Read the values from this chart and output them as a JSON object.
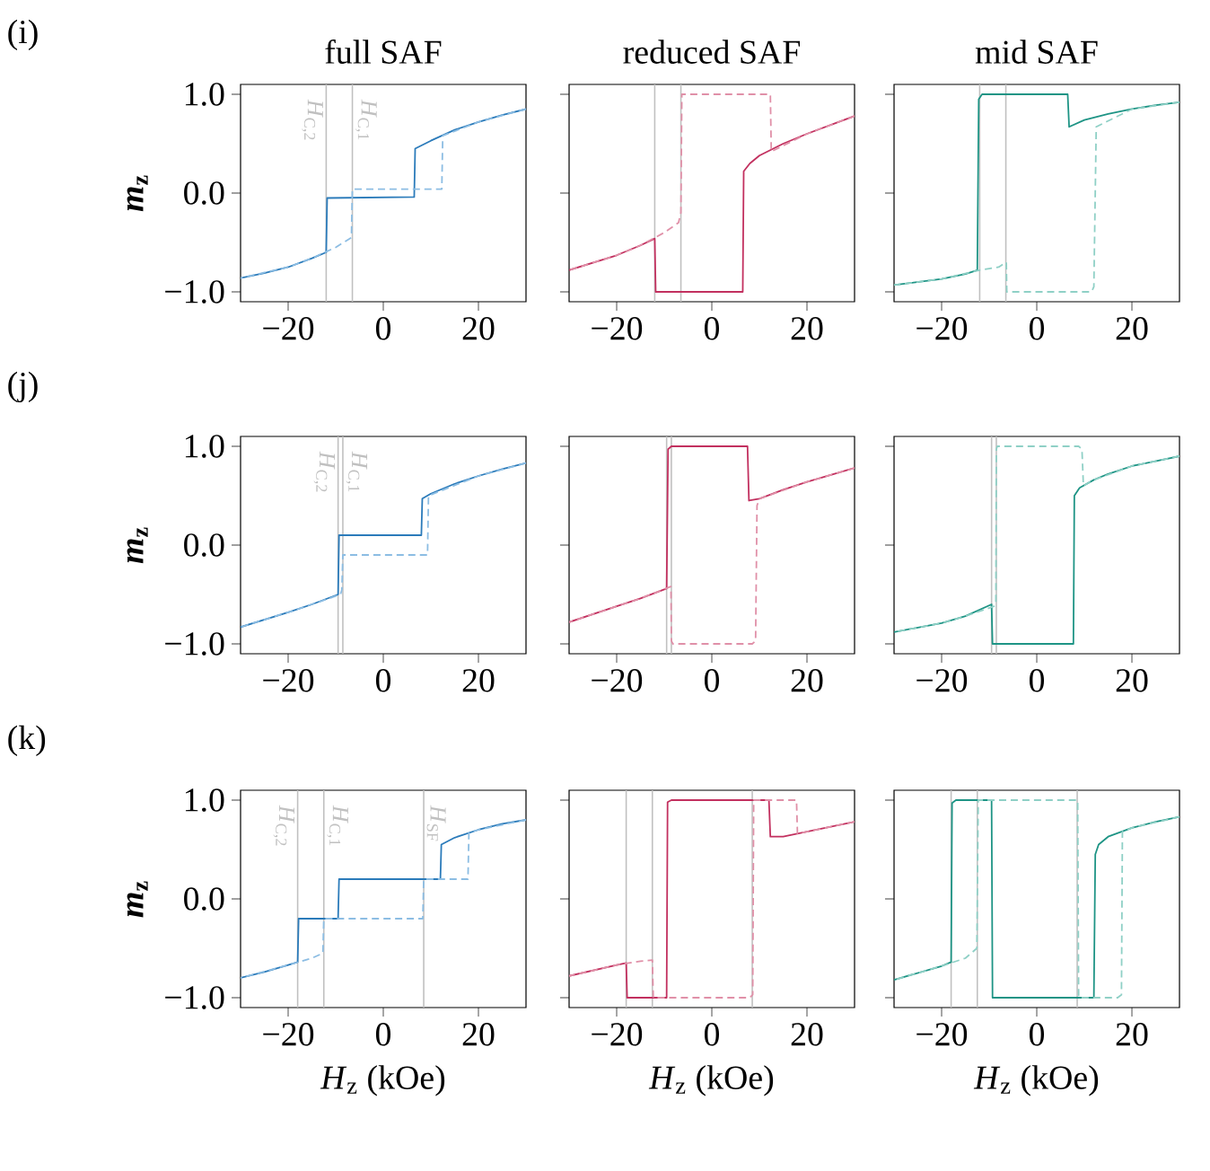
{
  "chart_data": [
    {
      "type": "line",
      "title": "full SAF",
      "ylabel": "*m*$_{z}$",
      "annotations": [
        "(i)"
      ],
      "xlim": [
        -30,
        30
      ],
      "ylim": [
        -1.1,
        1.1
      ],
      "xticks": [
        {
          "value": -20,
          "label": "−20"
        },
        {
          "value": 0,
          "label": "0"
        },
        {
          "value": 20,
          "label": "20"
        }
      ],
      "yticks": [
        {
          "value": -1,
          "label": "−1.0"
        },
        {
          "value": 0,
          "label": "0.0"
        },
        {
          "value": 1,
          "label": "1.0"
        }
      ],
      "ref_lines": [
        {
          "axis": "x",
          "value": -12,
          "label": "*H*$_{C,2}$",
          "color": "#c0c0c0"
        },
        {
          "axis": "x",
          "value": -6.5,
          "label": "*H*$_{C,1}$",
          "color": "#c0c0c0"
        }
      ],
      "series": [
        {
          "color": "#2b7bba",
          "line_style": "solid",
          "x": [
            -30,
            -25,
            -20,
            -15,
            -12,
            -11.8,
            6.5,
            6.7,
            10,
            15,
            20,
            25,
            30
          ],
          "values": [
            -0.86,
            -0.81,
            -0.75,
            -0.66,
            -0.6,
            -0.05,
            -0.04,
            0.45,
            0.53,
            0.64,
            0.72,
            0.79,
            0.85
          ]
        },
        {
          "color": "#8cbde3",
          "line_style": "dashed",
          "x": [
            30,
            20,
            12.5,
            12.3,
            -6.5,
            -6.7,
            -10,
            -15,
            -20,
            -30
          ],
          "values": [
            0.85,
            0.72,
            0.58,
            0.04,
            0.04,
            -0.45,
            -0.55,
            -0.66,
            -0.75,
            -0.86
          ]
        }
      ]
    },
    {
      "type": "line",
      "title": "reduced SAF",
      "tick_labels": "x",
      "xlim": [
        -30,
        30
      ],
      "ylim": [
        -1.1,
        1.1
      ],
      "xticks": [
        {
          "value": -20,
          "label": "−20"
        },
        {
          "value": 0,
          "label": "0"
        },
        {
          "value": 20,
          "label": "20"
        }
      ],
      "yticks": [
        {
          "value": -1,
          "label": null
        },
        {
          "value": 0,
          "label": null
        },
        {
          "value": 1,
          "label": null
        }
      ],
      "ref_lines": [
        {
          "axis": "x",
          "value": -12,
          "color": "#c0c0c0"
        },
        {
          "axis": "x",
          "value": -6.5,
          "color": "#c0c0c0"
        }
      ],
      "series": [
        {
          "color": "#c2305f",
          "line_style": "solid",
          "x": [
            -30,
            -20,
            -15,
            -12,
            -11.8,
            6.5,
            6.7,
            8,
            10,
            15,
            20,
            25,
            30
          ],
          "values": [
            -0.78,
            -0.63,
            -0.53,
            -0.46,
            -1.0,
            -1.0,
            0.22,
            0.3,
            0.38,
            0.5,
            0.6,
            0.69,
            0.78
          ]
        },
        {
          "color": "#e090a8",
          "line_style": "dashed",
          "x": [
            30,
            20,
            12.5,
            12.3,
            -6.3,
            -6.5,
            -7,
            -10,
            -15,
            -20,
            -30
          ],
          "values": [
            0.78,
            0.6,
            0.42,
            1.0,
            1.0,
            -0.2,
            -0.3,
            -0.4,
            -0.53,
            -0.63,
            -0.78
          ]
        }
      ]
    },
    {
      "type": "line",
      "title": "mid SAF",
      "tick_labels": "x",
      "xlim": [
        -30,
        30
      ],
      "ylim": [
        -1.1,
        1.1
      ],
      "xticks": [
        {
          "value": -20,
          "label": "−20"
        },
        {
          "value": 0,
          "label": "0"
        },
        {
          "value": 20,
          "label": "20"
        }
      ],
      "yticks": [
        {
          "value": -1,
          "label": null
        },
        {
          "value": 0,
          "label": null
        },
        {
          "value": 1,
          "label": null
        }
      ],
      "ref_lines": [
        {
          "axis": "x",
          "value": -12,
          "color": "#c0c0c0"
        },
        {
          "axis": "x",
          "value": -6.5,
          "color": "#c0c0c0"
        }
      ],
      "series": [
        {
          "color": "#1e9485",
          "line_style": "solid",
          "x": [
            -30,
            -20,
            -15,
            -12.5,
            -12.2,
            -11.5,
            6.5,
            6.8,
            10,
            15,
            20,
            25,
            30
          ],
          "values": [
            -0.93,
            -0.87,
            -0.82,
            -0.78,
            0.95,
            1.0,
            1.0,
            0.67,
            0.74,
            0.8,
            0.85,
            0.89,
            0.92
          ]
        },
        {
          "color": "#8fd0c6",
          "line_style": "dashed",
          "x": [
            30,
            20,
            12.5,
            12,
            11.5,
            -6.3,
            -6.4,
            -8,
            -12,
            -20,
            -30
          ],
          "values": [
            0.92,
            0.85,
            0.67,
            -0.95,
            -1.0,
            -1.0,
            -0.7,
            -0.75,
            -0.78,
            -0.87,
            -0.93
          ]
        }
      ]
    },
    {
      "type": "line",
      "ylabel": "*m*$_{z}$",
      "annotations": [
        "(j)"
      ],
      "xlim": [
        -30,
        30
      ],
      "ylim": [
        -1.1,
        1.1
      ],
      "xticks": [
        {
          "value": -20,
          "label": "−20"
        },
        {
          "value": 0,
          "label": "0"
        },
        {
          "value": 20,
          "label": "20"
        }
      ],
      "yticks": [
        {
          "value": -1,
          "label": "−1.0"
        },
        {
          "value": 0,
          "label": "0.0"
        },
        {
          "value": 1,
          "label": "1.0"
        }
      ],
      "ref_lines": [
        {
          "axis": "x",
          "value": -9.5,
          "label": "*H*$_{C,2}$",
          "color": "#c0c0c0"
        },
        {
          "axis": "x",
          "value": -8.5,
          "label": "*H*$_{C,1}$",
          "color": "#c0c0c0"
        }
      ],
      "series": [
        {
          "color": "#2b7bba",
          "line_style": "solid",
          "x": [
            -30,
            -20,
            -15,
            -9.5,
            -9.3,
            8,
            8.2,
            10,
            15,
            20,
            25,
            30
          ],
          "values": [
            -0.83,
            -0.68,
            -0.6,
            -0.5,
            0.1,
            0.1,
            0.47,
            0.52,
            0.62,
            0.7,
            0.77,
            0.83
          ]
        },
        {
          "color": "#8cbde3",
          "line_style": "dashed",
          "x": [
            30,
            20,
            9.5,
            9.3,
            -8.5,
            -8.7,
            -9,
            -15,
            -20,
            -30
          ],
          "values": [
            0.83,
            0.7,
            0.5,
            -0.1,
            -0.1,
            -0.45,
            -0.5,
            -0.6,
            -0.68,
            -0.83
          ]
        }
      ]
    },
    {
      "type": "line",
      "tick_labels": "x",
      "xlim": [
        -30,
        30
      ],
      "ylim": [
        -1.1,
        1.1
      ],
      "xticks": [
        {
          "value": -20,
          "label": "−20"
        },
        {
          "value": 0,
          "label": "0"
        },
        {
          "value": 20,
          "label": "20"
        }
      ],
      "yticks": [
        {
          "value": -1,
          "label": null
        },
        {
          "value": 0,
          "label": null
        },
        {
          "value": 1,
          "label": null
        }
      ],
      "ref_lines": [
        {
          "axis": "x",
          "value": -9.5,
          "color": "#c0c0c0"
        },
        {
          "axis": "x",
          "value": -8.5,
          "color": "#c0c0c0"
        }
      ],
      "series": [
        {
          "color": "#c2305f",
          "line_style": "solid",
          "x": [
            -30,
            -20,
            -15,
            -9.5,
            -9.2,
            -8.5,
            7.5,
            7.8,
            10,
            15,
            20,
            25,
            30
          ],
          "values": [
            -0.78,
            -0.62,
            -0.54,
            -0.44,
            0.97,
            1.0,
            1.0,
            0.45,
            0.47,
            0.56,
            0.64,
            0.71,
            0.78
          ]
        },
        {
          "color": "#e090a8",
          "line_style": "dashed",
          "x": [
            30,
            20,
            10,
            9.5,
            9.2,
            8.5,
            -8.2,
            -8.5,
            -8.6,
            -15,
            -20,
            -30
          ],
          "values": [
            0.78,
            0.64,
            0.47,
            0.4,
            -0.97,
            -1.0,
            -1.0,
            -0.97,
            -0.42,
            -0.54,
            -0.62,
            -0.78
          ]
        }
      ]
    },
    {
      "type": "line",
      "tick_labels": "x",
      "xlim": [
        -30,
        30
      ],
      "ylim": [
        -1.1,
        1.1
      ],
      "xticks": [
        {
          "value": -20,
          "label": "−20"
        },
        {
          "value": 0,
          "label": "0"
        },
        {
          "value": 20,
          "label": "20"
        }
      ],
      "yticks": [
        {
          "value": -1,
          "label": null
        },
        {
          "value": 0,
          "label": null
        },
        {
          "value": 1,
          "label": null
        }
      ],
      "ref_lines": [
        {
          "axis": "x",
          "value": -9.5,
          "color": "#c0c0c0"
        },
        {
          "axis": "x",
          "value": -8.5,
          "color": "#c0c0c0"
        }
      ],
      "series": [
        {
          "color": "#1e9485",
          "line_style": "solid",
          "x": [
            -30,
            -20,
            -15,
            -9.5,
            -9.3,
            7.7,
            7.9,
            9,
            12,
            15,
            20,
            25,
            30
          ],
          "values": [
            -0.88,
            -0.79,
            -0.72,
            -0.6,
            -1.0,
            -1.0,
            0.5,
            0.58,
            0.66,
            0.72,
            0.8,
            0.85,
            0.9
          ]
        },
        {
          "color": "#8fd0c6",
          "line_style": "dashed",
          "x": [
            30,
            20,
            12,
            9.8,
            9.5,
            8.8,
            -8.3,
            -8.5,
            -8.6,
            -9,
            -15,
            -20,
            -30
          ],
          "values": [
            0.9,
            0.8,
            0.66,
            0.6,
            0.97,
            1.0,
            1.0,
            0.97,
            -0.6,
            -0.62,
            -0.72,
            -0.79,
            -0.88
          ]
        }
      ]
    },
    {
      "type": "line",
      "ylabel": "*m*$_{z}$",
      "xlabel": "*H*$_{z}$ (kOe)",
      "annotations": [
        "(k)"
      ],
      "xlim": [
        -30,
        30
      ],
      "ylim": [
        -1.1,
        1.1
      ],
      "xticks": [
        {
          "value": -20,
          "label": "−20"
        },
        {
          "value": 0,
          "label": "0"
        },
        {
          "value": 20,
          "label": "20"
        }
      ],
      "yticks": [
        {
          "value": -1,
          "label": "−1.0"
        },
        {
          "value": 0,
          "label": "0.0"
        },
        {
          "value": 1,
          "label": "1.0"
        }
      ],
      "ref_lines": [
        {
          "axis": "x",
          "value": -18,
          "label": "*H*$_{C,2}$",
          "color": "#c0c0c0"
        },
        {
          "axis": "x",
          "value": -12.5,
          "label": "*H*$_{C,1}$",
          "color": "#c0c0c0"
        },
        {
          "axis": "x",
          "value": 8.5,
          "label": "*H*$_{SF}$",
          "color": "#c0c0c0"
        }
      ],
      "series": [
        {
          "color": "#2b7bba",
          "line_style": "solid",
          "x": [
            -30,
            -25,
            -20,
            -18,
            -17.8,
            -9.5,
            -9.3,
            12,
            12.2,
            15,
            20,
            25,
            30
          ],
          "values": [
            -0.8,
            -0.74,
            -0.67,
            -0.64,
            -0.2,
            -0.2,
            0.2,
            0.2,
            0.55,
            0.62,
            0.7,
            0.76,
            0.8
          ]
        },
        {
          "color": "#8cbde3",
          "line_style": "dashed",
          "x": [
            30,
            20,
            18,
            17.8,
            8.5,
            8.3,
            -12.5,
            -12.7,
            -15,
            -20,
            -30
          ],
          "values": [
            0.8,
            0.7,
            0.67,
            0.2,
            0.2,
            -0.2,
            -0.2,
            -0.55,
            -0.6,
            -0.67,
            -0.8
          ]
        }
      ]
    },
    {
      "type": "line",
      "xlabel": "*H*$_{z}$ (kOe)",
      "tick_labels": "x",
      "xlim": [
        -30,
        30
      ],
      "ylim": [
        -1.1,
        1.1
      ],
      "xticks": [
        {
          "value": -20,
          "label": "−20"
        },
        {
          "value": 0,
          "label": "0"
        },
        {
          "value": 20,
          "label": "20"
        }
      ],
      "yticks": [
        {
          "value": -1,
          "label": null
        },
        {
          "value": 0,
          "label": null
        },
        {
          "value": 1,
          "label": null
        }
      ],
      "ref_lines": [
        {
          "axis": "x",
          "value": -18,
          "color": "#c0c0c0"
        },
        {
          "axis": "x",
          "value": -12.5,
          "color": "#c0c0c0"
        },
        {
          "axis": "x",
          "value": 8.5,
          "color": "#c0c0c0"
        }
      ],
      "series": [
        {
          "color": "#c2305f",
          "line_style": "solid",
          "x": [
            -30,
            -20,
            -18,
            -17.8,
            -9.5,
            -9.3,
            -8.5,
            12,
            12.3,
            15,
            20,
            25,
            30
          ],
          "values": [
            -0.78,
            -0.67,
            -0.65,
            -1.0,
            -1.0,
            0.98,
            1.0,
            1.0,
            0.63,
            0.63,
            0.68,
            0.73,
            0.78
          ]
        },
        {
          "color": "#e090a8",
          "line_style": "dashed",
          "x": [
            30,
            20,
            18,
            17.8,
            8.8,
            8.6,
            8,
            -12.3,
            -12.5,
            -15,
            -20,
            -30
          ],
          "values": [
            0.78,
            0.68,
            0.66,
            1.0,
            1.0,
            -0.97,
            -1.0,
            -1.0,
            -0.62,
            -0.63,
            -0.67,
            -0.78
          ]
        }
      ]
    },
    {
      "type": "line",
      "xlabel": "*H*$_{z}$ (kOe)",
      "tick_labels": "x",
      "xlim": [
        -30,
        30
      ],
      "ylim": [
        -1.1,
        1.1
      ],
      "xticks": [
        {
          "value": -20,
          "label": "−20"
        },
        {
          "value": 0,
          "label": "0"
        },
        {
          "value": 20,
          "label": "20"
        }
      ],
      "yticks": [
        {
          "value": -1,
          "label": null
        },
        {
          "value": 0,
          "label": null
        },
        {
          "value": 1,
          "label": null
        }
      ],
      "ref_lines": [
        {
          "axis": "x",
          "value": -18,
          "color": "#c0c0c0"
        },
        {
          "axis": "x",
          "value": -12.5,
          "color": "#c0c0c0"
        },
        {
          "axis": "x",
          "value": 8.5,
          "color": "#c0c0c0"
        }
      ],
      "series": [
        {
          "color": "#1e9485",
          "line_style": "solid",
          "x": [
            -30,
            -20,
            -18,
            -17.8,
            -17,
            -9.5,
            -9.3,
            12,
            12.3,
            13,
            15,
            20,
            25,
            30
          ],
          "values": [
            -0.82,
            -0.68,
            -0.64,
            0.97,
            1.0,
            1.0,
            -1.0,
            -1.0,
            0.45,
            0.55,
            0.63,
            0.72,
            0.78,
            0.83
          ]
        },
        {
          "color": "#8fd0c6",
          "line_style": "dashed",
          "x": [
            30,
            20,
            18,
            17.8,
            17,
            8.8,
            8.6,
            -12.3,
            -12.6,
            -15,
            -20,
            -30
          ],
          "values": [
            0.83,
            0.72,
            0.68,
            -0.97,
            -1.0,
            -1.0,
            1.0,
            1.0,
            -0.5,
            -0.6,
            -0.68,
            -0.82
          ]
        }
      ]
    }
  ]
}
